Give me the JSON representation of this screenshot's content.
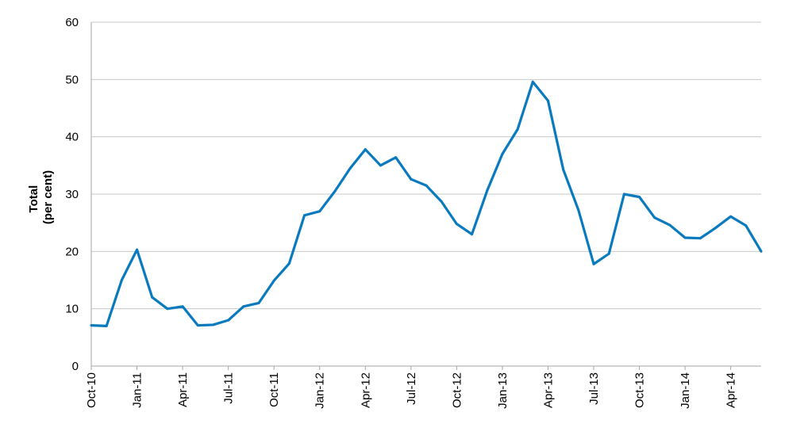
{
  "chart_data": {
    "type": "line",
    "title": "",
    "ylabel_lines": [
      "Total",
      "(per cent)"
    ],
    "xlabel": "",
    "ylim": [
      0,
      60
    ],
    "yticks": [
      0,
      10,
      20,
      30,
      40,
      50,
      60
    ],
    "grid": true,
    "x": [
      "Oct-10",
      "Nov-10",
      "Dec-10",
      "Jan-11",
      "Feb-11",
      "Mar-11",
      "Apr-11",
      "May-11",
      "Jun-11",
      "Jul-11",
      "Aug-11",
      "Sep-11",
      "Oct-11",
      "Nov-11",
      "Dec-11",
      "Jan-12",
      "Feb-12",
      "Mar-12",
      "Apr-12",
      "May-12",
      "Jun-12",
      "Jul-12",
      "Aug-12",
      "Sep-12",
      "Oct-12",
      "Nov-12",
      "Dec-12",
      "Jan-13",
      "Feb-13",
      "Mar-13",
      "Apr-13",
      "May-13",
      "Jun-13",
      "Jul-13",
      "Aug-13",
      "Sep-13",
      "Oct-13",
      "Nov-13",
      "Dec-13",
      "Jan-14",
      "Feb-14",
      "Mar-14",
      "Apr-14",
      "May-14",
      "Jun-14"
    ],
    "xticks": [
      "Oct-10",
      "Jan-11",
      "Apr-11",
      "Jul-11",
      "Oct-11",
      "Jan-12",
      "Apr-12",
      "Jul-12",
      "Oct-12",
      "Jan-13",
      "Apr-13",
      "Jul-13",
      "Oct-13",
      "Jan-14",
      "Apr-14"
    ],
    "series": [
      {
        "color": "#0a7abf",
        "values": [
          7.1,
          7.0,
          15.0,
          20.3,
          12.0,
          10.0,
          10.4,
          7.1,
          7.2,
          8.0,
          10.4,
          11.0,
          14.9,
          17.9,
          26.3,
          27.0,
          30.5,
          34.5,
          37.8,
          35.0,
          36.4,
          32.6,
          31.5,
          28.7,
          24.8,
          23.0,
          30.6,
          37.0,
          41.3,
          49.6,
          46.3,
          34.3,
          27.2,
          17.8,
          19.6,
          30.0,
          29.5,
          25.9,
          24.6,
          22.4,
          22.3,
          24.1,
          26.1,
          24.5,
          20.0
        ]
      }
    ]
  }
}
